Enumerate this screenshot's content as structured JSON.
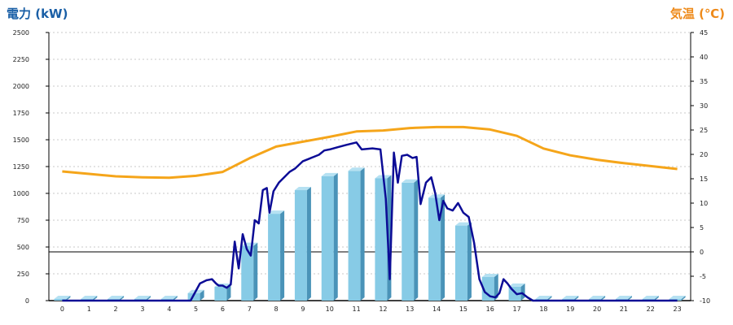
{
  "colors": {
    "power_title": "#1a5fa6",
    "temp_title": "#ee8a1a",
    "bar_front": "#87cbe6",
    "bar_side": "#4a93b8",
    "bar_top": "#b5e1f2",
    "demand_line": "#0c0c96",
    "temp_line": "#f5a51a",
    "grid": "#c8c8c8",
    "zero_line": "#000000"
  },
  "chart_data": {
    "type": "bar",
    "left_axis_title": "電力 (kW)",
    "right_axis_title": "気温 (℃)",
    "categories": [
      "0",
      "1",
      "2",
      "3",
      "4",
      "5",
      "6",
      "7",
      "8",
      "9",
      "10",
      "11",
      "12",
      "13",
      "14",
      "15",
      "16",
      "17",
      "18",
      "19",
      "20",
      "21",
      "22",
      "23"
    ],
    "ylim_left": [
      0,
      2500
    ],
    "yticks_left": [
      "0",
      "250",
      "500",
      "750",
      "1000",
      "1250",
      "1500",
      "1750",
      "2000",
      "2250",
      "2500"
    ],
    "ylim_right": [
      -10,
      45
    ],
    "yticks_right": [
      "-10",
      "-5",
      "0",
      "5",
      "10",
      "15",
      "20",
      "25",
      "30",
      "35",
      "40",
      "45"
    ],
    "grid": true,
    "series": [
      {
        "kind": "bar",
        "axis": "left",
        "values": [
          0,
          0,
          0,
          0,
          0,
          70,
          130,
          510,
          810,
          1030,
          1160,
          1210,
          1140,
          1100,
          960,
          700,
          220,
          130,
          15,
          0,
          0,
          0,
          0,
          0
        ]
      },
      {
        "kind": "line",
        "axis": "left",
        "points": [
          [
            0,
            0
          ],
          [
            1,
            0
          ],
          [
            2,
            0
          ],
          [
            3,
            0
          ],
          [
            4,
            0
          ],
          [
            4.8,
            0
          ],
          [
            5.15,
            160
          ],
          [
            5.4,
            190
          ],
          [
            5.6,
            200
          ],
          [
            5.75,
            160
          ],
          [
            5.85,
            140
          ],
          [
            6.0,
            140
          ],
          [
            6.15,
            120
          ],
          [
            6.3,
            150
          ],
          [
            6.45,
            550
          ],
          [
            6.6,
            300
          ],
          [
            6.75,
            620
          ],
          [
            6.9,
            480
          ],
          [
            7.05,
            420
          ],
          [
            7.2,
            750
          ],
          [
            7.35,
            720
          ],
          [
            7.5,
            1030
          ],
          [
            7.65,
            1050
          ],
          [
            7.75,
            820
          ],
          [
            7.9,
            1020
          ],
          [
            8.1,
            1100
          ],
          [
            8.3,
            1150
          ],
          [
            8.5,
            1200
          ],
          [
            8.7,
            1230
          ],
          [
            9.0,
            1300
          ],
          [
            9.2,
            1320
          ],
          [
            9.4,
            1340
          ],
          [
            9.6,
            1360
          ],
          [
            9.8,
            1400
          ],
          [
            10.0,
            1410
          ],
          [
            10.3,
            1430
          ],
          [
            10.6,
            1450
          ],
          [
            11.0,
            1475
          ],
          [
            11.2,
            1410
          ],
          [
            11.6,
            1420
          ],
          [
            11.9,
            1410
          ],
          [
            12.1,
            950
          ],
          [
            12.25,
            200
          ],
          [
            12.4,
            1380
          ],
          [
            12.55,
            1100
          ],
          [
            12.7,
            1350
          ],
          [
            12.9,
            1360
          ],
          [
            13.1,
            1330
          ],
          [
            13.25,
            1340
          ],
          [
            13.4,
            900
          ],
          [
            13.6,
            1100
          ],
          [
            13.8,
            1150
          ],
          [
            13.95,
            1000
          ],
          [
            14.1,
            750
          ],
          [
            14.25,
            930
          ],
          [
            14.4,
            860
          ],
          [
            14.6,
            840
          ],
          [
            14.8,
            910
          ],
          [
            15.0,
            820
          ],
          [
            15.2,
            780
          ],
          [
            15.4,
            540
          ],
          [
            15.6,
            200
          ],
          [
            15.8,
            80
          ],
          [
            16.0,
            40
          ],
          [
            16.2,
            30
          ],
          [
            16.35,
            70
          ],
          [
            16.5,
            200
          ],
          [
            16.65,
            160
          ],
          [
            16.8,
            110
          ],
          [
            17.0,
            60
          ],
          [
            17.2,
            70
          ],
          [
            17.4,
            30
          ],
          [
            17.6,
            0
          ],
          [
            18,
            0
          ],
          [
            19,
            0
          ],
          [
            20,
            0
          ],
          [
            21,
            0
          ],
          [
            22,
            0
          ],
          [
            23,
            0
          ]
        ]
      },
      {
        "kind": "line",
        "axis": "right",
        "points": [
          [
            0,
            16.5
          ],
          [
            1,
            16
          ],
          [
            2,
            15.5
          ],
          [
            3,
            15.3
          ],
          [
            4,
            15.2
          ],
          [
            5,
            15.6
          ],
          [
            6,
            16.4
          ],
          [
            7,
            19.2
          ],
          [
            8,
            21.6
          ],
          [
            9,
            22.6
          ],
          [
            10,
            23.6
          ],
          [
            11,
            24.7
          ],
          [
            12,
            24.9
          ],
          [
            13,
            25.4
          ],
          [
            14,
            25.6
          ],
          [
            15,
            25.6
          ],
          [
            16,
            25.1
          ],
          [
            17,
            23.8
          ],
          [
            18,
            21.2
          ],
          [
            19,
            19.8
          ],
          [
            20,
            18.9
          ],
          [
            21,
            18.2
          ],
          [
            22,
            17.6
          ],
          [
            23,
            17
          ]
        ]
      }
    ]
  }
}
